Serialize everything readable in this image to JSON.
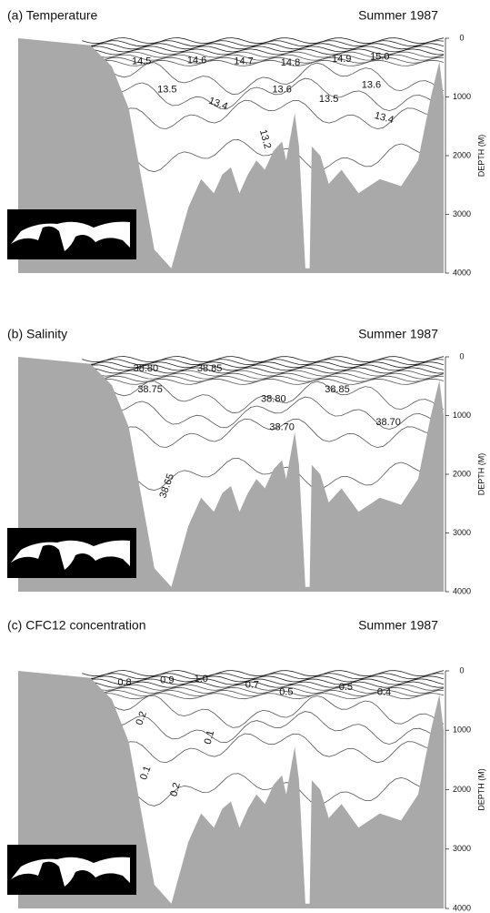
{
  "chart_data": [
    {
      "type": "contour",
      "title": "(a) Temperature",
      "subtitle": "Summer 1987",
      "y_label": "DEPTH (M)",
      "ylim": [
        0,
        4000
      ],
      "yticks": [
        0,
        1000,
        2000,
        3000,
        4000
      ],
      "y_inverted": true,
      "contour_labels": [
        "14.5",
        "14.6",
        "14.7",
        "14.8",
        "14.9",
        "15.0",
        "13.5",
        "13.6",
        "13.5",
        "13.6",
        "13.4",
        "13.4",
        "13.2"
      ]
    },
    {
      "type": "contour",
      "title": "(b) Salinity",
      "subtitle": "Summer 1987",
      "y_label": "DEPTH (M)",
      "ylim": [
        0,
        4000
      ],
      "yticks": [
        0,
        1000,
        2000,
        3000,
        4000
      ],
      "y_inverted": true,
      "contour_labels": [
        "38.80",
        "38.85",
        "38.75",
        "38.80",
        "38.85",
        "38.70",
        "38.70",
        "38.65"
      ]
    },
    {
      "type": "contour",
      "title": "(c) CFC12 concentration",
      "subtitle": "Summer 1987",
      "y_label": "DEPTH (M)",
      "ylim": [
        0,
        4000
      ],
      "yticks": [
        0,
        1000,
        2000,
        3000,
        4000
      ],
      "y_inverted": true,
      "contour_labels": [
        "0.8",
        "0.9",
        "1.0",
        "0.7",
        "0.5",
        "0.5",
        "0.4",
        "0.2",
        "0.1",
        "0.1",
        "0.2"
      ]
    }
  ]
}
